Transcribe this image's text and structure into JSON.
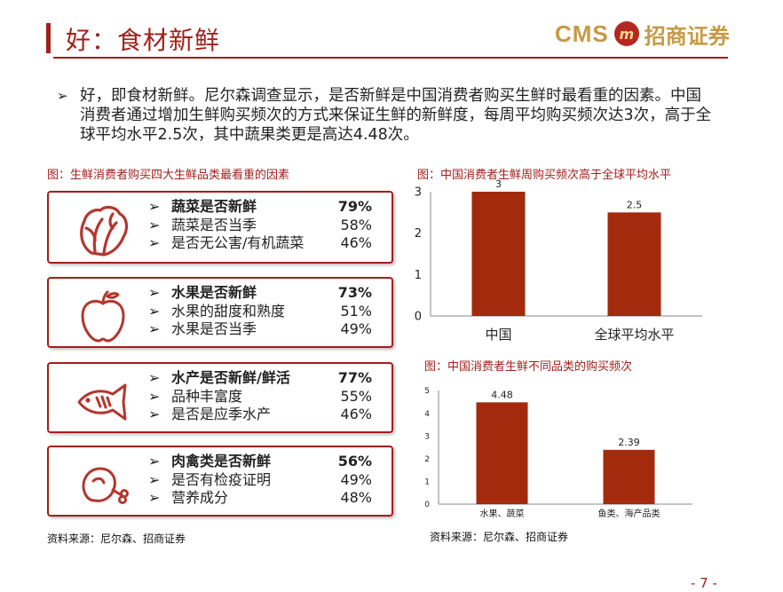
{
  "header": {
    "title": "好：食材新鲜",
    "logo_en": "CMS",
    "logo_cn": "招商证券"
  },
  "intro": "好，即食材新鲜。尼尔森调查显示，是否新鲜是中国消费者购买生鲜时最看重的因素。中国消费者通过增加生鲜购买频次的方式来保证生鲜的新鲜度，每周平均购买频次达3次，高于全球平均水平2.5次，其中蔬果类更是高达4.48次。",
  "left": {
    "caption": "图：生鲜消费者购买四大生鲜品类最看重的因素",
    "source": "资料来源：尼尔森、招商证券",
    "cards": [
      {
        "icon": "lettuce-icon",
        "rows": [
          {
            "label": "蔬菜是否新鲜",
            "pct": "79%"
          },
          {
            "label": "蔬菜是否当季",
            "pct": "58%"
          },
          {
            "label": "是否无公害/有机蔬菜",
            "pct": "46%"
          }
        ]
      },
      {
        "icon": "apple-icon",
        "rows": [
          {
            "label": "水果是否新鲜",
            "pct": "73%"
          },
          {
            "label": "水果的甜度和熟度",
            "pct": "51%"
          },
          {
            "label": "水果是否当季",
            "pct": "49%"
          }
        ]
      },
      {
        "icon": "fish-icon",
        "rows": [
          {
            "label": "水产是否新鲜/鲜活",
            "pct": "77%"
          },
          {
            "label": "品种丰富度",
            "pct": "55%"
          },
          {
            "label": "是否是应季水产",
            "pct": "46%"
          }
        ]
      },
      {
        "icon": "meat-icon",
        "rows": [
          {
            "label": "肉禽类是否新鲜",
            "pct": "56%"
          },
          {
            "label": "是否有检疫证明",
            "pct": "49%"
          },
          {
            "label": "营养成分",
            "pct": "48%"
          }
        ]
      }
    ]
  },
  "chart_data": [
    {
      "type": "bar",
      "title": "图：中国消费者生鲜周购买频次高于全球平均水平",
      "categories": [
        "中国",
        "全球平均水平"
      ],
      "values": [
        3,
        2.5
      ],
      "data_labels": [
        "3",
        "2.5"
      ],
      "ylim": [
        0,
        3
      ],
      "yticks": [
        "0",
        "1",
        "2",
        "3"
      ],
      "color": "#a32a0c"
    },
    {
      "type": "bar",
      "title": "图：中国消费者生鲜不同品类的购买频次",
      "categories": [
        "水果、蔬菜",
        "鱼类、海产品类"
      ],
      "values": [
        4.48,
        2.39
      ],
      "data_labels": [
        "4.48",
        "2.39"
      ],
      "ylim": [
        0,
        5
      ],
      "yticks": [
        "0",
        "1",
        "2",
        "3",
        "4",
        "5"
      ],
      "color": "#a32a0c",
      "source": "资料来源：尼尔森、招商证券"
    }
  ],
  "footer": {
    "page": "- 7 -"
  }
}
